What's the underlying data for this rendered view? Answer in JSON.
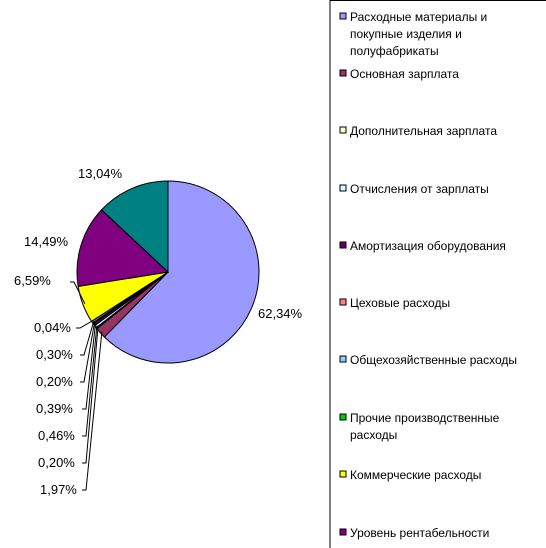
{
  "chart_data": {
    "type": "pie",
    "title": "",
    "slices": [
      {
        "label": "Расходные материалы и покупные изделия и полуфабрикаты",
        "value": 62.34,
        "display": "62,34%",
        "color": "#9999ff"
      },
      {
        "label": "Основная зарплата",
        "value": 1.97,
        "display": "1,97%",
        "color": "#993366"
      },
      {
        "label": "Дополнительная зарплата",
        "value": 0.2,
        "display": "0,20%",
        "color": "#ffffcc"
      },
      {
        "label": "Отчисления от зарплаты",
        "value": 0.46,
        "display": "0,46%",
        "color": "#ccffff"
      },
      {
        "label": "Амортизация оборудования",
        "value": 0.39,
        "display": "0,39%",
        "color": "#660066"
      },
      {
        "label": "Цеховые расходы",
        "value": 0.2,
        "display": "0,20%",
        "color": "#ff8080"
      },
      {
        "label": "Общехозяйственные расходы",
        "value": 0.3,
        "display": "0,30%",
        "color": "#99ccff"
      },
      {
        "label": "Прочие производственные расходы",
        "value": 0.04,
        "display": "0,04%",
        "color": "#00cc00"
      },
      {
        "label": "Коммерческие расходы",
        "value": 6.59,
        "display": "6,59%",
        "color": "#ffff00"
      },
      {
        "label": "Уровень рентабельности",
        "value": 14.49,
        "display": "14,49%",
        "color": "#800080"
      },
      {
        "label": "",
        "value": 13.04,
        "display": "13,04%",
        "color": "#008080"
      }
    ],
    "legend": {
      "placement": "right",
      "entries": [
        {
          "lines": [
            "Расходные материалы и",
            "покупные изделия и",
            "полуфабрикаты"
          ],
          "color": "#9999ff"
        },
        {
          "lines": [
            "Основная зарплата"
          ],
          "color": "#993366"
        },
        {
          "lines": [
            "Дополнительная зарплата"
          ],
          "color": "#ffffcc"
        },
        {
          "lines": [
            "Отчисления от зарплаты"
          ],
          "color": "#ccffff"
        },
        {
          "lines": [
            "Амортизация оборудования"
          ],
          "color": "#660066"
        },
        {
          "lines": [
            "Цеховые расходы"
          ],
          "color": "#ff8080"
        },
        {
          "lines": [
            "Общехозяйственные расходы"
          ],
          "color": "#99ccff"
        },
        {
          "lines": [
            "Прочие производственные",
            "расходы"
          ],
          "color": "#00cc00"
        },
        {
          "lines": [
            "Коммерческие расходы"
          ],
          "color": "#ffff00"
        },
        {
          "lines": [
            "Уровень рентабельности"
          ],
          "color": "#800080"
        }
      ]
    }
  }
}
